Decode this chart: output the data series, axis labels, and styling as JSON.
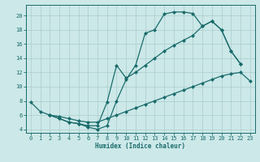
{
  "xlabel": "Humidex (Indice chaleur)",
  "bg_color": "#cce8e8",
  "line_color": "#1a6b6b",
  "grid_color": "#aacccc",
  "spine_color": "#1a6b6b",
  "xlim": [
    -0.5,
    23.5
  ],
  "ylim": [
    3.5,
    21.5
  ],
  "xticks": [
    0,
    1,
    2,
    3,
    4,
    5,
    6,
    7,
    8,
    9,
    10,
    11,
    12,
    13,
    14,
    15,
    16,
    17,
    18,
    19,
    20,
    21,
    22,
    23
  ],
  "yticks": [
    4,
    6,
    8,
    10,
    12,
    14,
    16,
    18,
    20
  ],
  "c1_x": [
    0,
    1,
    2,
    3,
    4,
    5,
    6,
    7,
    8,
    9,
    10,
    11,
    12,
    13,
    14,
    15,
    16,
    17,
    18,
    19,
    20,
    21,
    22
  ],
  "c1_y": [
    7.8,
    6.5,
    6.0,
    5.5,
    5.0,
    4.8,
    4.3,
    4.0,
    4.5,
    8.0,
    11.0,
    13.0,
    17.5,
    18.0,
    20.2,
    20.5,
    20.5,
    20.3,
    18.5,
    19.2,
    18.0,
    15.0,
    13.2
  ],
  "c2_x": [
    2,
    3,
    4,
    5,
    6,
    7,
    8,
    9,
    10,
    11,
    12,
    13,
    14,
    15,
    16,
    17,
    18,
    19,
    20,
    21,
    22
  ],
  "c2_y": [
    6.0,
    5.5,
    5.0,
    4.8,
    4.5,
    4.5,
    7.8,
    13.0,
    11.2,
    12.0,
    13.0,
    14.0,
    15.0,
    15.8,
    16.5,
    17.2,
    18.5,
    19.2,
    18.0,
    15.0,
    13.2
  ],
  "c3_x": [
    2,
    3,
    4,
    5,
    6,
    7,
    8,
    9,
    10,
    11,
    12,
    13,
    14,
    15,
    16,
    17,
    18,
    19,
    20,
    21,
    22,
    23
  ],
  "c3_y": [
    6.0,
    5.8,
    5.5,
    5.2,
    5.0,
    5.0,
    5.5,
    6.0,
    6.5,
    7.0,
    7.5,
    8.0,
    8.5,
    9.0,
    9.5,
    10.0,
    10.5,
    11.0,
    11.5,
    11.8,
    12.0,
    10.8
  ]
}
